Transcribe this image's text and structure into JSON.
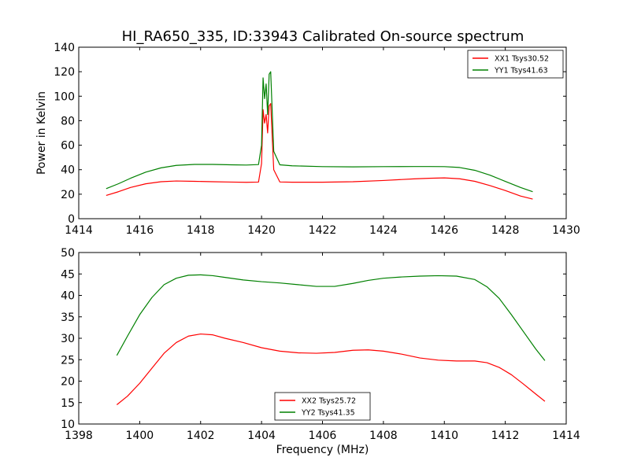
{
  "title": "HI_RA650_335, ID:33943 Calibrated On-source spectrum",
  "chart_data": [
    {
      "type": "line",
      "ylabel": "Power in Kelvin",
      "xlabel": "",
      "xlim": [
        1414,
        1430
      ],
      "ylim": [
        0,
        140
      ],
      "xticks": [
        1414,
        1416,
        1418,
        1420,
        1422,
        1424,
        1426,
        1428,
        1430
      ],
      "yticks": [
        0,
        20,
        40,
        60,
        80,
        100,
        120,
        140
      ],
      "grid": false,
      "legend_position": "top-right",
      "series": [
        {
          "name": "XX1 Tsys30.52",
          "color": "#ff0000",
          "x": [
            1414.9,
            1415.3,
            1415.7,
            1416.2,
            1416.7,
            1417.2,
            1417.8,
            1418.4,
            1419.0,
            1419.5,
            1419.9,
            1420.0,
            1420.05,
            1420.1,
            1420.15,
            1420.2,
            1420.25,
            1420.3,
            1420.4,
            1420.6,
            1421.0,
            1422.0,
            1423.0,
            1424.0,
            1425.0,
            1425.5,
            1426.0,
            1426.5,
            1427.0,
            1427.5,
            1428.0,
            1428.5,
            1428.9
          ],
          "y": [
            19,
            22,
            25.5,
            28.5,
            30.2,
            30.8,
            30.5,
            30.2,
            29.9,
            29.7,
            29.9,
            45,
            89,
            78,
            85,
            70,
            92,
            94,
            40,
            30,
            29.8,
            29.8,
            30.2,
            31.2,
            32.5,
            33,
            33.3,
            32.6,
            30.5,
            27,
            23,
            18.5,
            16
          ]
        },
        {
          "name": "YY1 Tsys41.63",
          "color": "#008000",
          "x": [
            1414.9,
            1415.3,
            1415.7,
            1416.2,
            1416.7,
            1417.2,
            1417.8,
            1418.4,
            1419.0,
            1419.5,
            1419.9,
            1420.0,
            1420.05,
            1420.1,
            1420.15,
            1420.2,
            1420.25,
            1420.3,
            1420.4,
            1420.6,
            1421.0,
            1422.0,
            1423.0,
            1424.0,
            1425.0,
            1425.5,
            1426.0,
            1426.5,
            1427.0,
            1427.5,
            1428.0,
            1428.5,
            1428.9
          ],
          "y": [
            24.5,
            28.5,
            33,
            38,
            41.5,
            43.5,
            44.3,
            44.3,
            44,
            43.8,
            44.2,
            60,
            115,
            98,
            110,
            85,
            118,
            120,
            55,
            44,
            43.2,
            42.5,
            42.3,
            42.5,
            42.6,
            42.6,
            42.5,
            41.8,
            39.5,
            35.5,
            30.5,
            25.5,
            22
          ]
        }
      ]
    },
    {
      "type": "line",
      "ylabel": "",
      "xlabel": "Frequency (MHz)",
      "xlim": [
        1398,
        1414
      ],
      "ylim": [
        10,
        50
      ],
      "xticks": [
        1398,
        1400,
        1402,
        1404,
        1406,
        1408,
        1410,
        1412,
        1414
      ],
      "yticks": [
        10,
        15,
        20,
        25,
        30,
        35,
        40,
        45,
        50
      ],
      "grid": false,
      "legend_position": "bottom-center",
      "series": [
        {
          "name": "XX2 Tsys25.72",
          "color": "#ff0000",
          "x": [
            1399.25,
            1399.6,
            1400.0,
            1400.4,
            1400.8,
            1401.2,
            1401.6,
            1402.0,
            1402.4,
            1402.8,
            1403.4,
            1404.0,
            1404.6,
            1405.2,
            1405.8,
            1406.4,
            1407.0,
            1407.5,
            1408.0,
            1408.6,
            1409.2,
            1409.8,
            1410.4,
            1411.0,
            1411.4,
            1411.8,
            1412.2,
            1412.6,
            1413.0,
            1413.3
          ],
          "y": [
            14.5,
            16.5,
            19.5,
            23,
            26.5,
            29,
            30.5,
            31,
            30.8,
            30,
            29,
            27.8,
            27,
            26.6,
            26.5,
            26.7,
            27.2,
            27.3,
            27,
            26.3,
            25.4,
            24.9,
            24.7,
            24.7,
            24.3,
            23.2,
            21.5,
            19.3,
            17,
            15.3
          ]
        },
        {
          "name": "YY2 Tsys41.35",
          "color": "#008000",
          "x": [
            1399.25,
            1399.6,
            1400.0,
            1400.4,
            1400.8,
            1401.2,
            1401.6,
            1402.0,
            1402.4,
            1402.8,
            1403.4,
            1404.0,
            1404.6,
            1405.2,
            1405.8,
            1406.4,
            1407.0,
            1407.5,
            1408.0,
            1408.6,
            1409.2,
            1409.8,
            1410.4,
            1411.0,
            1411.4,
            1411.8,
            1412.2,
            1412.6,
            1413.0,
            1413.3
          ],
          "y": [
            26,
            30.5,
            35.5,
            39.5,
            42.5,
            44,
            44.7,
            44.8,
            44.6,
            44.2,
            43.6,
            43.2,
            42.9,
            42.5,
            42.1,
            42.1,
            42.8,
            43.5,
            44,
            44.3,
            44.5,
            44.6,
            44.5,
            43.7,
            42,
            39.3,
            35.5,
            31.5,
            27.5,
            24.8
          ]
        }
      ]
    }
  ]
}
